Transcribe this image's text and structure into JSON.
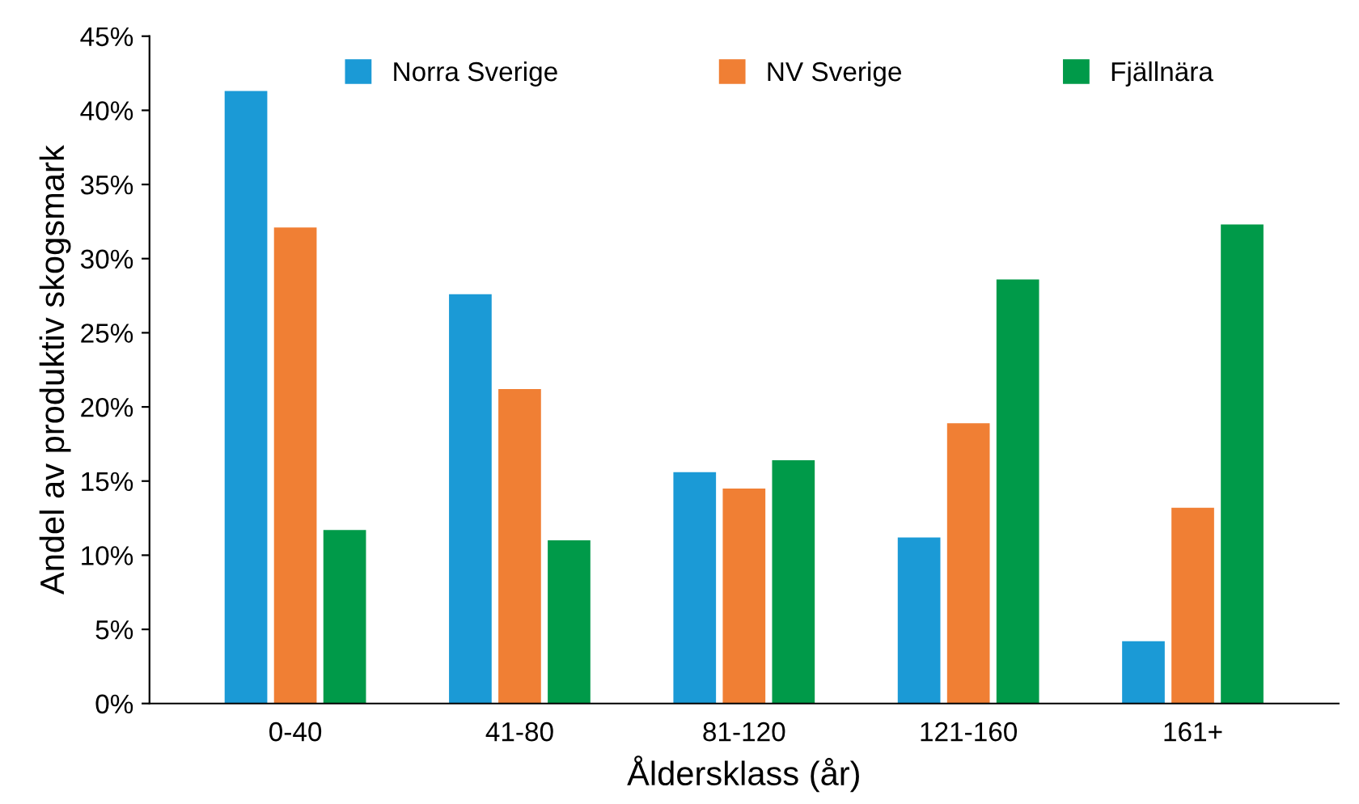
{
  "chart_data": {
    "type": "bar",
    "xlabel": "Åldersklass (år)",
    "ylabel": "Andel av produktiv skogsmark",
    "categories": [
      "0-40",
      "41-80",
      "81-120",
      "121-160",
      "161+"
    ],
    "series": [
      {
        "name": "Norra Sverige",
        "color": "#1b9ad6",
        "values": [
          41.3,
          27.6,
          15.6,
          11.2,
          4.2
        ]
      },
      {
        "name": "NV Sverige",
        "color": "#f07f34",
        "values": [
          32.1,
          21.2,
          14.5,
          18.9,
          13.2
        ]
      },
      {
        "name": "Fjällnära",
        "color": "#009a49",
        "values": [
          11.7,
          11.0,
          16.4,
          28.6,
          32.3
        ]
      }
    ],
    "ylim": [
      0,
      45
    ],
    "yticks": [
      {
        "value": 0,
        "label": "0%"
      },
      {
        "value": 5,
        "label": "5%"
      },
      {
        "value": 10,
        "label": "10%"
      },
      {
        "value": 15,
        "label": "15%"
      },
      {
        "value": 20,
        "label": "20%"
      },
      {
        "value": 25,
        "label": "25%"
      },
      {
        "value": 30,
        "label": "30%"
      },
      {
        "value": 35,
        "label": "35%"
      },
      {
        "value": 40,
        "label": "40%"
      },
      {
        "value": 45,
        "label": "45%"
      }
    ],
    "grid": false,
    "legend": "top"
  }
}
